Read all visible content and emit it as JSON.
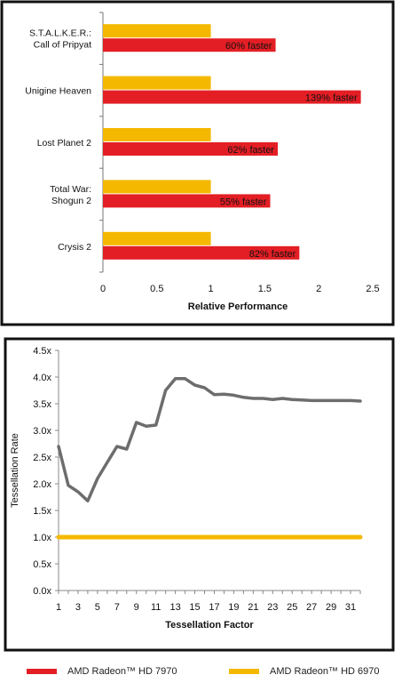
{
  "colors": {
    "hd7970": "#e31e24",
    "hd6970": "#f5b800",
    "line": "#6d6d6d",
    "frame": "#111111"
  },
  "chart_data": [
    {
      "type": "bar",
      "orientation": "horizontal",
      "categories": [
        [
          "S.T.A.L.K.E.R.:",
          "Call of Pripyat"
        ],
        [
          "Unigine Heaven"
        ],
        [
          "Lost Planet 2"
        ],
        [
          "Total War:",
          "Shogun 2"
        ],
        [
          "Crysis 2"
        ]
      ],
      "series": [
        {
          "name": "AMD Radeon™ HD 6970",
          "values": [
            1,
            1,
            1,
            1,
            1
          ]
        },
        {
          "name": "AMD Radeon™ HD 7970",
          "values": [
            1.6,
            2.39,
            1.62,
            1.55,
            1.82
          ]
        }
      ],
      "data_labels": [
        "60% faster",
        "139% faster",
        "62% faster",
        "55% faster",
        "82% faster"
      ],
      "xlabel": "Relative Performance",
      "xlim": [
        0,
        2.5
      ],
      "xticks": [
        "0",
        "0.5",
        "1",
        "1.5",
        "2",
        "2.5"
      ],
      "grid": false
    },
    {
      "type": "line",
      "x": [
        1,
        2,
        3,
        4,
        5,
        6,
        7,
        8,
        9,
        10,
        11,
        12,
        13,
        14,
        15,
        16,
        17,
        18,
        19,
        20,
        21,
        22,
        23,
        24,
        25,
        26,
        27,
        28,
        29,
        30,
        31,
        32
      ],
      "series": [
        {
          "name": "AMD Radeon™ HD 7970",
          "values": [
            2.7,
            1.97,
            1.85,
            1.68,
            2.1,
            2.4,
            2.7,
            2.65,
            3.15,
            3.08,
            3.1,
            3.75,
            3.97,
            3.97,
            3.85,
            3.8,
            3.67,
            3.68,
            3.66,
            3.62,
            3.6,
            3.6,
            3.58,
            3.6,
            3.58,
            3.57,
            3.56,
            3.56,
            3.56,
            3.56,
            3.56,
            3.55
          ]
        },
        {
          "name": "AMD Radeon™ HD 6970",
          "values": [
            1,
            1,
            1,
            1,
            1,
            1,
            1,
            1,
            1,
            1,
            1,
            1,
            1,
            1,
            1,
            1,
            1,
            1,
            1,
            1,
            1,
            1,
            1,
            1,
            1,
            1,
            1,
            1,
            1,
            1,
            1,
            1
          ]
        }
      ],
      "xlabel": "Tessellation Factor",
      "ylabel": "Tessellation Rate",
      "ylim": [
        0,
        4.5
      ],
      "yticks": [
        "0.0x",
        "0.5x",
        "1.0x",
        "1.5x",
        "2.0x",
        "2.5x",
        "3.0x",
        "3.5x",
        "4.0x",
        "4.5x"
      ],
      "xticks": [
        "1",
        "3",
        "5",
        "7",
        "9",
        "11",
        "13",
        "15",
        "17",
        "19",
        "21",
        "23",
        "25",
        "27",
        "29",
        "31"
      ],
      "grid": false
    }
  ],
  "legend": [
    {
      "label": "AMD Radeon™ HD 7970",
      "series": "hd7970"
    },
    {
      "label": "AMD Radeon™ HD 6970",
      "series": "hd6970"
    }
  ]
}
